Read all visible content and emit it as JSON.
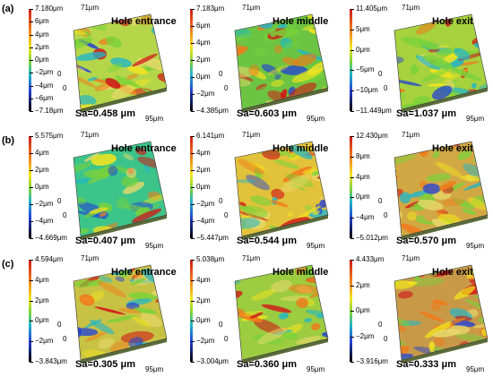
{
  "rows": [
    {
      "label": "(a)",
      "panels": [
        {
          "title": "Hole entrance",
          "sa": "Sa=0.458 μm",
          "ax_y": "71μm",
          "ax_x": "95μm",
          "ax_z0": "0",
          "ax_o": "0",
          "ticks": [
            "7.180μm",
            "6μm",
            "4μm",
            "2μm",
            "0μm",
            "−2μm",
            "−4μm",
            "−6μm",
            "−7.18μm"
          ],
          "dominant": "#b6d64a"
        },
        {
          "title": "Hole middle",
          "sa": "Sa=0.603 μm",
          "ax_y": "71μm",
          "ax_x": "95μm",
          "ax_z0": "0",
          "ax_o": "0",
          "ticks": [
            "7.183μm",
            "6μm",
            "4μm",
            "2μm",
            "0μm",
            "−2μm",
            "−4.385μm"
          ],
          "dominant": "#6cc442"
        },
        {
          "title": "Hole exit",
          "sa": "Sa=1.037 μm",
          "ax_y": "71μm",
          "ax_x": "95μm",
          "ax_z0": "0",
          "ax_o": "0",
          "ticks": [
            "11.405μm",
            "5μm",
            "0μm",
            "−5μm",
            "−10μm",
            "−11.449μm"
          ],
          "dominant": "#a6d23e"
        }
      ]
    },
    {
      "label": "(b)",
      "panels": [
        {
          "title": "Hole entrance",
          "sa": "Sa=0.407 μm",
          "ax_y": "71μm",
          "ax_x": "95μm",
          "ax_z0": "0",
          "ax_o": "0",
          "ticks": [
            "5.575μm",
            "4μm",
            "2μm",
            "0μm",
            "−2μm",
            "−4μm",
            "−4.669μm"
          ],
          "dominant": "#3cc48a"
        },
        {
          "title": "Hole middle",
          "sa": "Sa=0.544 μm",
          "ax_y": "71μm",
          "ax_x": "95μm",
          "ax_z0": "0",
          "ax_o": "0",
          "ticks": [
            "6.141μm",
            "4μm",
            "2μm",
            "0μm",
            "−2μm",
            "−4μm",
            "−5.447μm"
          ],
          "dominant": "#e2c23a"
        },
        {
          "title": "Hole exit",
          "sa": "Sa=0.570 μm",
          "ax_y": "71μm",
          "ax_x": "95μm",
          "ax_z0": "0",
          "ax_o": "0",
          "ticks": [
            "12.430μm",
            "8μm",
            "4μm",
            "0μm",
            "−4μm",
            "−5.012μm"
          ],
          "dominant": "#d2a844"
        }
      ]
    },
    {
      "label": "(c)",
      "panels": [
        {
          "title": "Hole entrance",
          "sa": "Sa=0.305 μm",
          "ax_y": "71μm",
          "ax_x": "95μm",
          "ax_z0": "0",
          "ax_o": "0",
          "ticks": [
            "4.594μm",
            "4μm",
            "2μm",
            "0μm",
            "−2μm",
            "−3.843μm"
          ],
          "dominant": "#c8c244"
        },
        {
          "title": "Hole middle",
          "sa": "Sa=0.360 μm",
          "ax_y": "71μm",
          "ax_x": "95μm",
          "ax_z0": "0",
          "ax_o": "0",
          "ticks": [
            "5.038μm",
            "4μm",
            "2μm",
            "0μm",
            "−2μm",
            "−3.004μm"
          ],
          "dominant": "#9ccc40"
        },
        {
          "title": "Hole exit",
          "sa": "Sa=0.333 μm",
          "ax_y": "71μm",
          "ax_x": "95μm",
          "ax_z0": "0",
          "ax_o": "0",
          "ticks": [
            "4.433μm",
            "2μm",
            "0μm",
            "−2μm",
            "−3.916μm"
          ],
          "dominant": "#c89a48"
        }
      ]
    }
  ],
  "colorscale": [
    "#d01818",
    "#f07a1a",
    "#f3e41e",
    "#7ad23a",
    "#20b6c8",
    "#2342d6",
    "#000000"
  ]
}
